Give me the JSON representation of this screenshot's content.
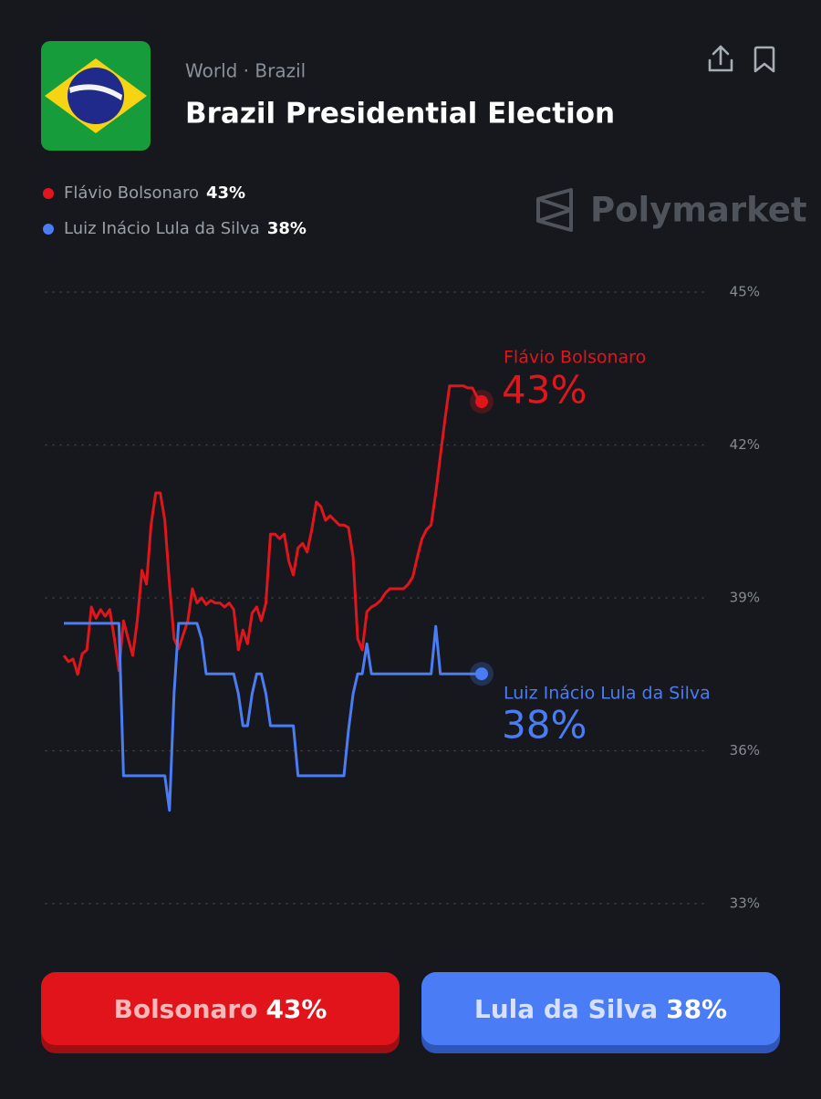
{
  "header": {
    "breadcrumb": "World · Brazil",
    "title": "Brazil Presidential Election"
  },
  "brand": "Polymarket",
  "chart_data": {
    "type": "line",
    "grid": true,
    "ylim": [
      33,
      45
    ],
    "yticks": [
      {
        "value": 33,
        "label": "33%"
      },
      {
        "value": 36,
        "label": "36%"
      },
      {
        "value": 39,
        "label": "39%"
      },
      {
        "value": 42,
        "label": "42%"
      },
      {
        "value": 45,
        "label": "45%"
      }
    ],
    "series": [
      {
        "name": "Flávio Bolsonaro",
        "color": "#e0161c",
        "current": "43%",
        "values": [
          37.87,
          37.75,
          37.8,
          37.5,
          37.9,
          37.98,
          38.82,
          38.6,
          38.77,
          38.64,
          38.77,
          38.2,
          37.57,
          38.55,
          38.2,
          37.87,
          38.55,
          39.54,
          39.27,
          40.43,
          41.06,
          41.06,
          40.52,
          39.27,
          38.2,
          38.0,
          38.28,
          38.55,
          39.18,
          38.9,
          39.0,
          38.87,
          38.95,
          38.9,
          38.9,
          38.82,
          38.9,
          38.77,
          37.98,
          38.37,
          38.1,
          38.7,
          38.82,
          38.55,
          38.9,
          40.25,
          40.25,
          40.16,
          40.25,
          39.72,
          39.45,
          39.98,
          40.07,
          39.9,
          40.34,
          40.88,
          40.79,
          40.52,
          40.61,
          40.52,
          40.43,
          40.43,
          40.38,
          39.8,
          38.2,
          37.98,
          38.73,
          38.82,
          38.87,
          38.95,
          39.09,
          39.18,
          39.18,
          39.18,
          39.18,
          39.27,
          39.41,
          39.8,
          40.16,
          40.34,
          40.43,
          41.06,
          41.78,
          42.49,
          43.16,
          43.16,
          43.16,
          43.16,
          43.12,
          43.12,
          42.94,
          42.85
        ]
      },
      {
        "name": "Luiz Inácio Lula da Silva",
        "color": "#4a7cf3",
        "current": "38%",
        "values": [
          38.5,
          38.5,
          38.5,
          38.5,
          38.5,
          38.5,
          38.5,
          38.5,
          38.5,
          38.5,
          38.5,
          38.5,
          38.5,
          35.51,
          35.51,
          35.51,
          35.51,
          35.51,
          35.51,
          35.51,
          35.51,
          35.51,
          35.51,
          34.83,
          37.12,
          38.5,
          38.5,
          38.5,
          38.5,
          38.5,
          38.2,
          37.51,
          37.51,
          37.51,
          37.51,
          37.51,
          37.51,
          37.51,
          37.12,
          36.49,
          36.49,
          37.12,
          37.51,
          37.51,
          37.12,
          36.49,
          36.49,
          36.49,
          36.49,
          36.49,
          36.49,
          35.51,
          35.51,
          35.51,
          35.51,
          35.51,
          35.51,
          35.51,
          35.51,
          35.51,
          35.51,
          35.51,
          36.4,
          37.12,
          37.51,
          37.51,
          38.1,
          37.51,
          37.51,
          37.51,
          37.51,
          37.51,
          37.51,
          37.51,
          37.51,
          37.51,
          37.51,
          37.51,
          37.51,
          37.51,
          37.51,
          38.44,
          37.51,
          37.51,
          37.51,
          37.51,
          37.51,
          37.51,
          37.51,
          37.51,
          37.51,
          37.51
        ]
      }
    ]
  },
  "buttons": [
    {
      "label": "Bolsonaro",
      "percent": "43%",
      "color": "#e0141a",
      "edge": "#9e0f13",
      "text": "#f6b8b8"
    },
    {
      "label": "Lula da Silva",
      "percent": "38%",
      "color": "#4a7cf6",
      "edge": "#2f55b8",
      "text": "#d5e1ff"
    }
  ]
}
